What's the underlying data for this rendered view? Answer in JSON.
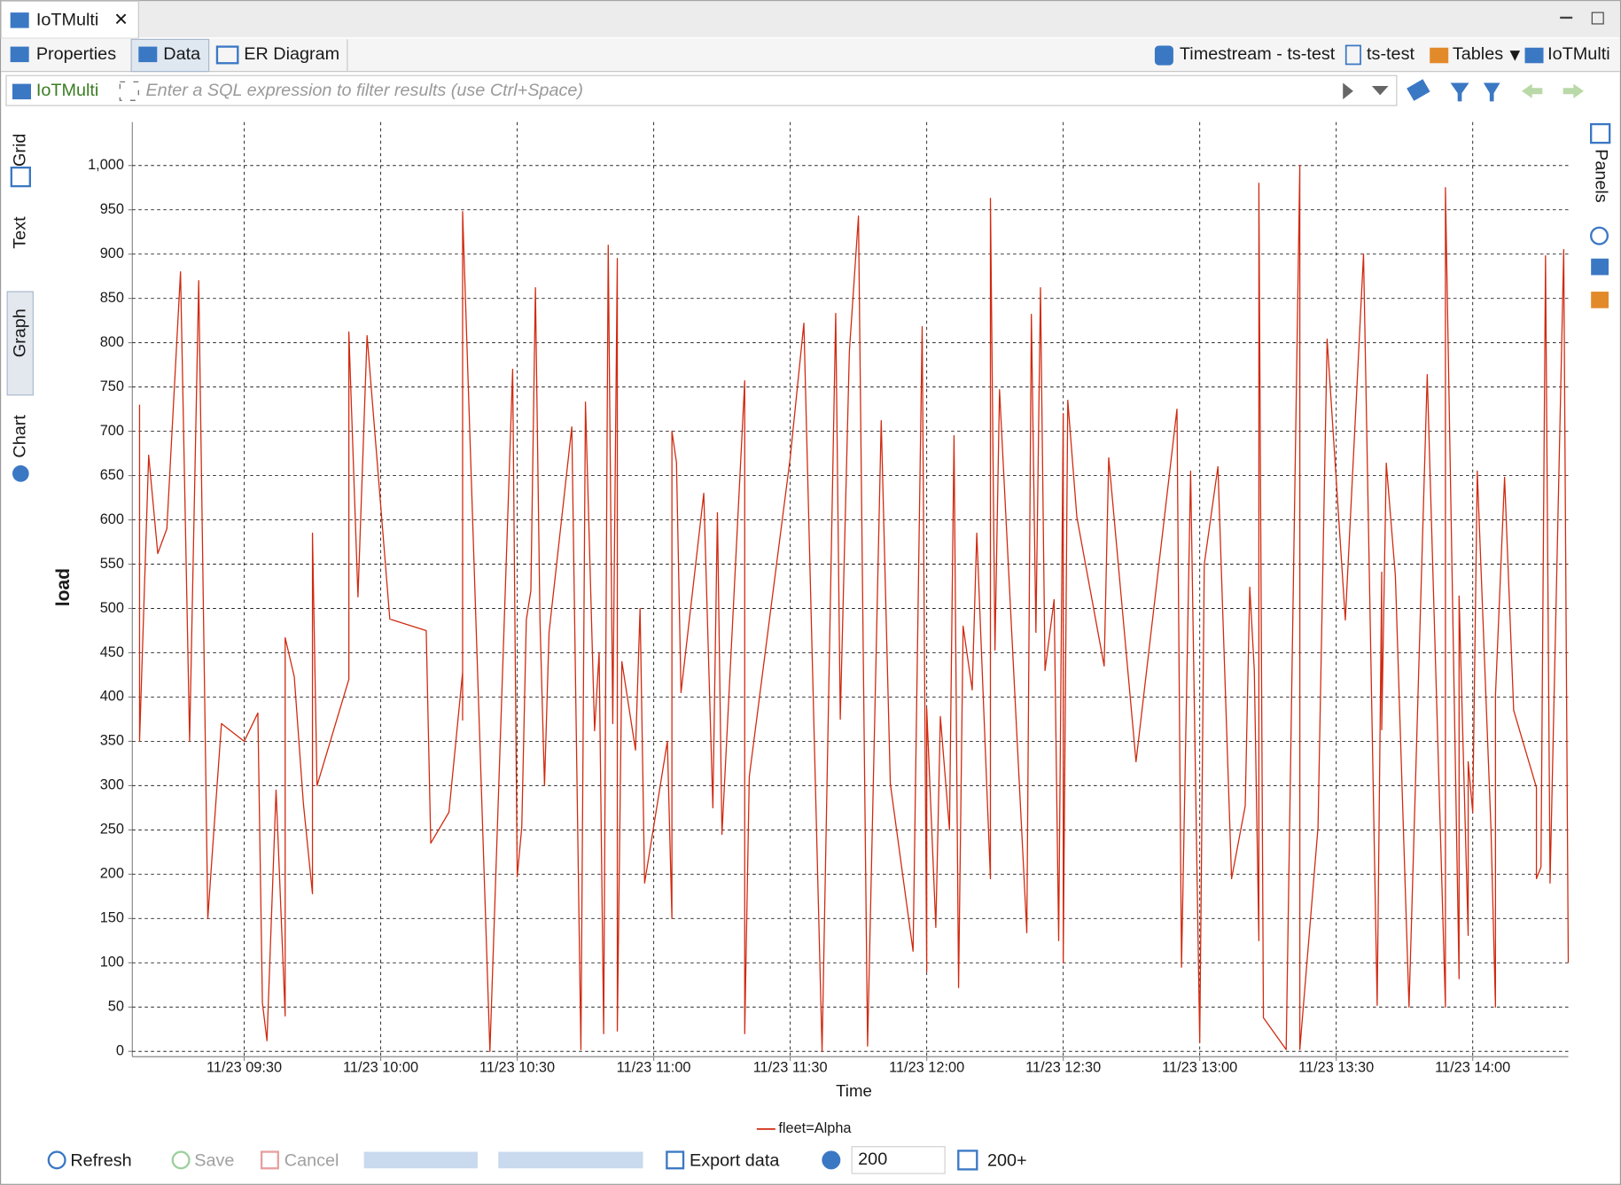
{
  "ui": {
    "editor_tab": "IoTMulti",
    "sub_tabs": [
      "Properties",
      "Data",
      "ER Diagram"
    ],
    "breadcrumbs": [
      "Timestream - ts-test",
      "ts-test",
      "Tables",
      "IoTMulti"
    ],
    "filter": {
      "table": "IoTMulti",
      "placeholder": "Enter a SQL expression to filter results (use Ctrl+Space)"
    },
    "view_tabs": [
      "Grid",
      "Text",
      "Graph",
      "Chart"
    ],
    "panels": "Panels",
    "toolbar": {
      "refresh": "Refresh",
      "save": "Save",
      "cancel": "Cancel",
      "export": "Export data",
      "fetch_size": "200",
      "fetch_more": "200+"
    }
  },
  "chart_data": {
    "type": "line",
    "ylabel": "load",
    "xlabel": "Time",
    "x": [
      "11/23 09:07",
      "11/23 09:07",
      "11/23 09:09",
      "11/23 09:11",
      "11/23 09:13",
      "11/23 09:16",
      "11/23 09:18",
      "11/23 09:20",
      "11/23 09:22",
      "11/23 09:23",
      "11/23 09:25",
      "11/23 09:30",
      "11/23 09:33",
      "11/23 09:34",
      "11/23 09:35",
      "11/23 09:37",
      "11/23 09:39",
      "11/23 09:39",
      "11/23 09:41",
      "11/23 09:43",
      "11/23 09:45",
      "11/23 09:45",
      "11/23 09:46",
      "11/23 09:53",
      "11/23 09:53",
      "11/23 09:55",
      "11/23 09:57",
      "11/23 10:02",
      "11/23 10:10",
      "11/23 10:11",
      "11/23 10:15",
      "11/23 10:18",
      "11/23 10:18",
      "11/23 10:18",
      "11/23 10:24",
      "11/23 10:29",
      "11/23 10:30",
      "11/23 10:31",
      "11/23 10:32",
      "11/23 10:33",
      "11/23 10:34",
      "11/23 10:35",
      "11/23 10:36",
      "11/23 10:37",
      "11/23 10:42",
      "11/23 10:44",
      "11/23 10:45",
      "11/23 10:47",
      "11/23 10:48",
      "11/23 10:49",
      "11/23 10:50",
      "11/23 10:51",
      "11/23 10:52",
      "11/23 10:52",
      "11/23 10:53",
      "11/23 10:56",
      "11/23 10:57",
      "11/23 10:58",
      "11/23 11:03",
      "11/23 11:04",
      "11/23 11:04",
      "11/23 11:05",
      "11/23 11:06",
      "11/23 11:11",
      "11/23 11:13",
      "11/23 11:14",
      "11/23 11:15",
      "11/23 11:20",
      "11/23 11:20",
      "11/23 11:21",
      "11/23 11:30",
      "11/23 11:33",
      "11/23 11:37",
      "11/23 11:40",
      "11/23 11:41",
      "11/23 11:43",
      "11/23 11:45",
      "11/23 11:47",
      "11/23 11:50",
      "11/23 11:52",
      "11/23 11:57",
      "11/23 11:59",
      "11/23 12:00",
      "11/23 12:00",
      "11/23 12:02",
      "11/23 12:03",
      "11/23 12:05",
      "11/23 12:06",
      "11/23 12:07",
      "11/23 12:08",
      "11/23 12:10",
      "11/23 12:11",
      "11/23 12:14",
      "11/23 12:14",
      "11/23 12:15",
      "11/23 12:16",
      "11/23 12:22",
      "11/23 12:23",
      "11/23 12:24",
      "11/23 12:25",
      "11/23 12:26",
      "11/23 12:28",
      "11/23 12:29",
      "11/23 12:30",
      "11/23 12:30",
      "11/23 12:31",
      "11/23 12:33",
      "11/23 12:39",
      "11/23 12:40",
      "11/23 12:46",
      "11/23 12:55",
      "11/23 12:56",
      "11/23 12:58",
      "11/23 13:00",
      "11/23 13:01",
      "11/23 13:04",
      "11/23 13:07",
      "11/23 13:10",
      "11/23 13:11",
      "11/23 13:12",
      "11/23 13:13",
      "11/23 13:13",
      "11/23 13:14",
      "11/23 13:19",
      "11/23 13:22",
      "11/23 13:22",
      "11/23 13:26",
      "11/23 13:28",
      "11/23 13:32",
      "11/23 13:36",
      "11/23 13:39",
      "11/23 13:40",
      "11/23 13:40",
      "11/23 13:41",
      "11/23 13:43",
      "11/23 13:46",
      "11/23 13:50",
      "11/23 13:54",
      "11/23 13:54",
      "11/23 13:57",
      "11/23 13:57",
      "11/23 13:59",
      "11/23 13:59",
      "11/23 14:00",
      "11/23 14:01",
      "11/23 14:04",
      "11/23 14:05",
      "11/23 14:05",
      "11/23 14:07",
      "11/23 14:09",
      "11/23 14:14",
      "11/23 14:14",
      "11/23 14:15",
      "11/23 14:16",
      "11/23 14:17",
      "11/23 14:20",
      "11/23 14:21"
    ],
    "series": [
      {
        "name": "fleet=Alpha",
        "color": "#d02a10",
        "values": [
          730,
          350,
          673,
          562,
          590,
          880,
          350,
          870,
          150,
          225,
          370,
          350,
          382,
          55,
          12,
          295,
          40,
          467,
          423,
          280,
          178,
          585,
          300,
          420,
          812,
          513,
          808,
          488,
          475,
          235,
          270,
          428,
          374,
          948,
          0,
          770,
          197,
          253,
          487,
          520,
          862,
          487,
          300,
          473,
          705,
          2,
          733,
          362,
          450,
          20,
          910,
          370,
          895,
          23,
          440,
          340,
          500,
          190,
          350,
          150,
          700,
          665,
          405,
          630,
          275,
          608,
          245,
          757,
          20,
          310,
          670,
          822,
          0,
          833,
          375,
          790,
          943,
          6,
          712,
          302,
          113,
          818,
          90,
          387,
          140,
          378,
          250,
          695,
          72,
          480,
          408,
          585,
          195,
          963,
          453,
          747,
          134,
          832,
          473,
          862,
          430,
          510,
          125,
          720,
          100,
          735,
          603,
          435,
          670,
          327,
          725,
          95,
          655,
          10,
          550,
          660,
          195,
          277,
          524,
          430,
          125,
          980,
          38,
          2,
          1000,
          2,
          253,
          804,
          487,
          900,
          52,
          541,
          363,
          664,
          537,
          50,
          764,
          50,
          975,
          82,
          514,
          131,
          327,
          270,
          655,
          253,
          50,
          402,
          648,
          385,
          298,
          195,
          208,
          898,
          190,
          905,
          100
        ]
      }
    ],
    "xlim": [
      "11/23 09:07",
      "11/23 14:21"
    ],
    "xticks": [
      "11/23 09:30",
      "11/23 10:00",
      "11/23 10:30",
      "11/23 11:00",
      "11/23 11:30",
      "11/23 12:00",
      "11/23 12:30",
      "11/23 13:00",
      "11/23 13:30",
      "11/23 14:00"
    ],
    "ylim": [
      -6,
      1049
    ],
    "yticks": [
      0,
      50,
      100,
      150,
      200,
      250,
      300,
      350,
      400,
      450,
      500,
      550,
      600,
      650,
      700,
      750,
      800,
      850,
      900,
      950,
      {
        "value": 1000,
        "label": "1,000"
      }
    ],
    "grid": true,
    "legend": "bottom"
  }
}
